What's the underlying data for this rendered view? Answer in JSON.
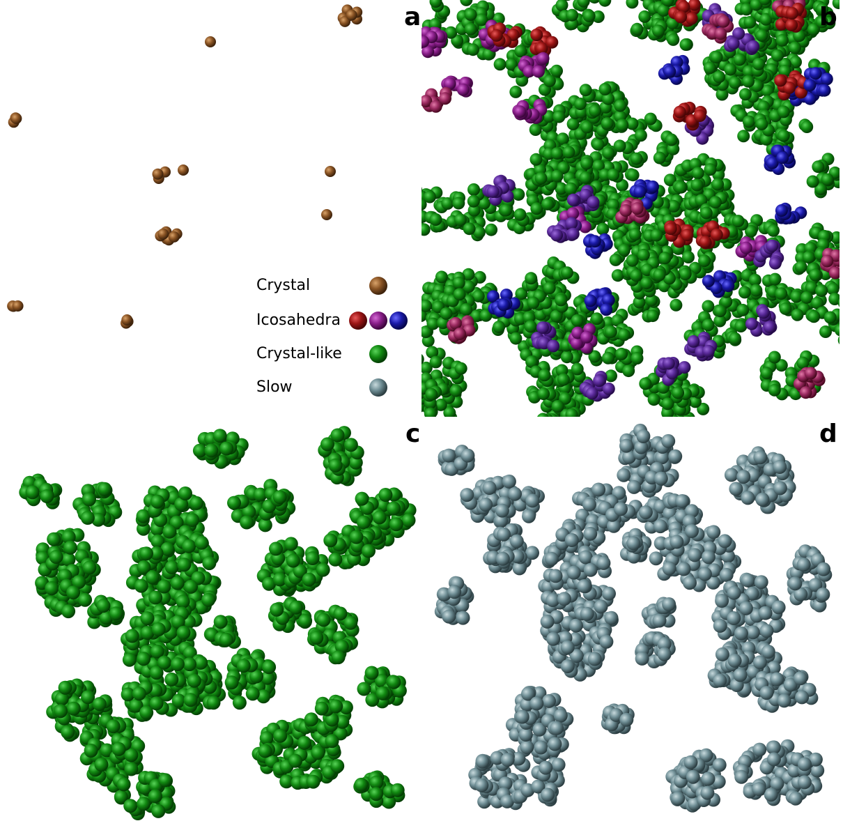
{
  "panels": {
    "a": {
      "label": "a"
    },
    "b": {
      "label": "b"
    },
    "c": {
      "label": "c"
    },
    "d": {
      "label": "d"
    }
  },
  "legend": [
    {
      "label": "Crystal"
    },
    {
      "label": "Icosahedra"
    },
    {
      "label": "Crystal-like"
    },
    {
      "label": "Slow"
    }
  ]
}
